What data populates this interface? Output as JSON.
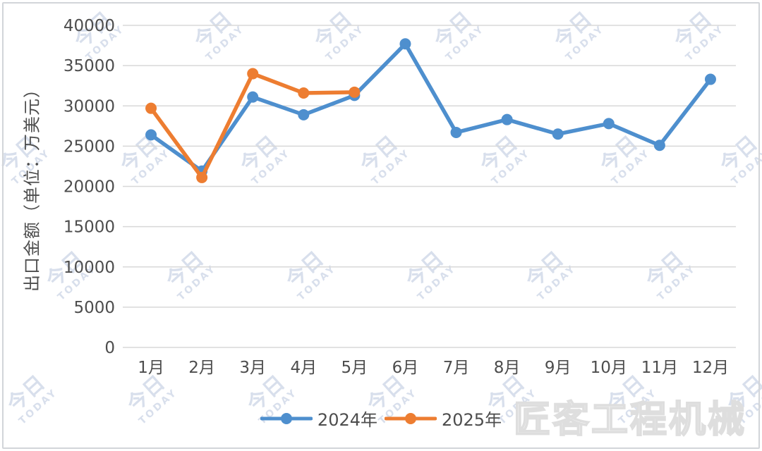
{
  "chart_data": {
    "type": "line",
    "title": "",
    "ylabel": "出口金额（单位：万美元）",
    "xlabel": "",
    "categories": [
      "1月",
      "2月",
      "3月",
      "4月",
      "5月",
      "6月",
      "7月",
      "8月",
      "9月",
      "10月",
      "11月",
      "12月"
    ],
    "series": [
      {
        "name": "2024年",
        "color": "#4E8FCE",
        "values": [
          26400,
          21900,
          31100,
          28900,
          31300,
          37700,
          26700,
          28300,
          26500,
          27800,
          25100,
          33300
        ]
      },
      {
        "name": "2025年",
        "color": "#ED7D31",
        "values": [
          29700,
          21100,
          34000,
          31600,
          31700
        ]
      }
    ],
    "ylim": [
      0,
      40000
    ],
    "ytick_step": 5000,
    "ytick_labels": [
      "0",
      "5000",
      "10000",
      "15000",
      "20000",
      "25000",
      "30000",
      "35000",
      "40000"
    ],
    "grid": "horizontal",
    "legend_position": "bottom-center",
    "colors": {
      "grid": "#D8D8D8",
      "text": "#4D4D4D"
    }
  },
  "watermark": {
    "tile_icon_text": "今日",
    "tile_text": "TODAY",
    "brand_text": "匠客工程机械"
  }
}
